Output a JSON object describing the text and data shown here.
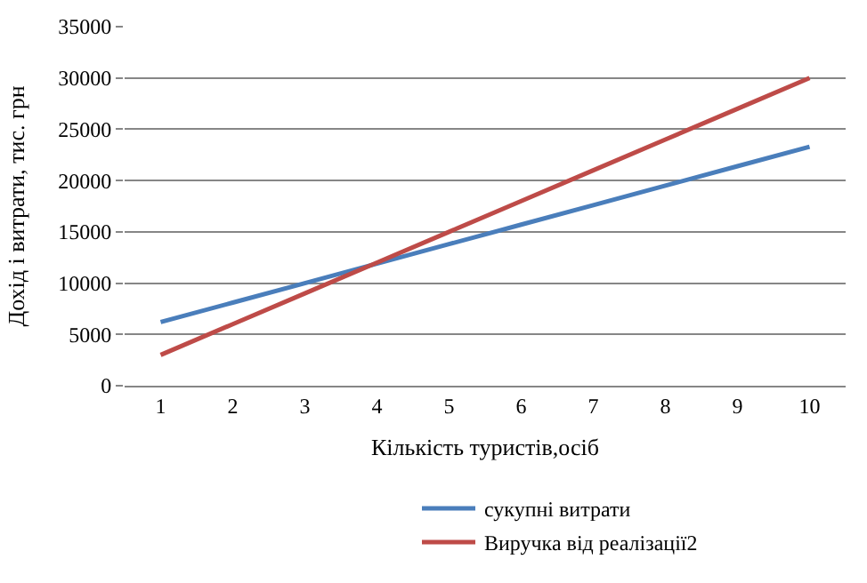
{
  "chart_data": {
    "type": "line",
    "xlabel": "Кількість туристів,осіб",
    "ylabel": "Дохід і витрати, тис. грн",
    "categories": [
      "1",
      "2",
      "3",
      "4",
      "5",
      "6",
      "7",
      "8",
      "9",
      "10"
    ],
    "series": [
      {
        "name": "сукупні витрати",
        "color": "#4a7ebb",
        "values": [
          6200,
          8100,
          10000,
          11900,
          13800,
          15700,
          17600,
          19500,
          21400,
          23300
        ]
      },
      {
        "name": "Виручка від реалізації2",
        "color": "#be4b48",
        "values": [
          3000,
          6000,
          9000,
          12000,
          15000,
          18000,
          21000,
          24000,
          27000,
          30000
        ]
      }
    ],
    "ylim": [
      0,
      35000
    ],
    "yticks": [
      0,
      5000,
      10000,
      15000,
      20000,
      25000,
      30000,
      35000
    ],
    "grid": "y",
    "legend": "bottom",
    "marker": "none",
    "line_style": "solid"
  }
}
